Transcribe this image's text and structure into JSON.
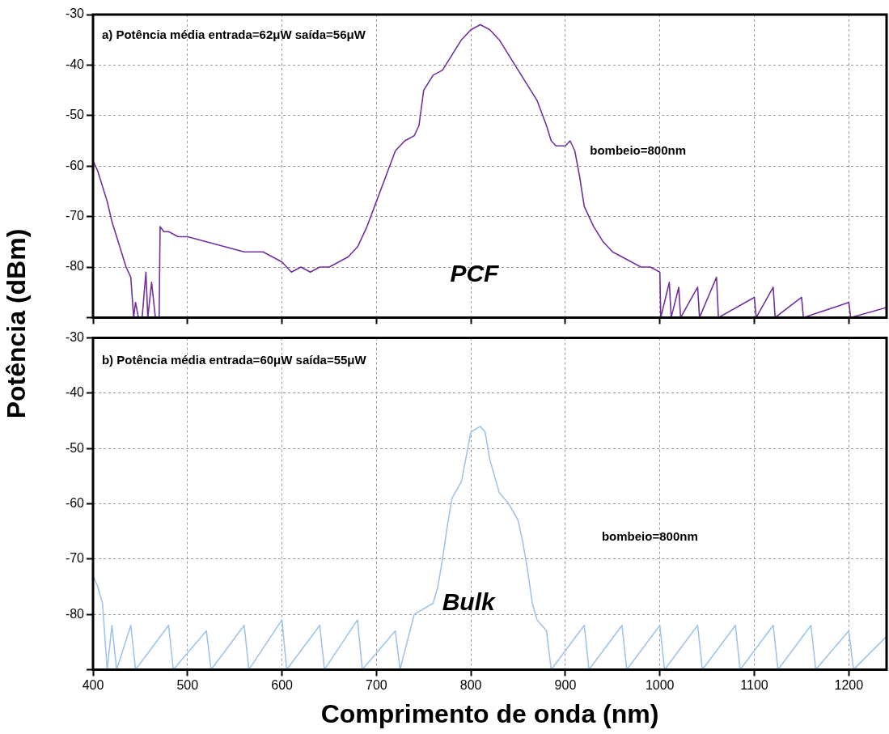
{
  "chart_data": [
    {
      "type": "line",
      "ylabel": "Potência (dBm)",
      "annotations": [
        "a) Potência média entrada=62μW saída=56μW",
        "bombeio=800nm"
      ],
      "xlim": [
        400,
        1240
      ],
      "xticks": [
        400,
        500,
        600,
        700,
        800,
        900,
        1000,
        1100,
        1200
      ],
      "ylim": [
        -90,
        -30
      ],
      "yticks": [
        -30,
        -40,
        -50,
        -60,
        -70,
        -80,
        {
          "value": -90,
          "label": null
        }
      ],
      "grid": true,
      "legend": false,
      "tick_labels": "y",
      "marker": "none",
      "line_style": "solid",
      "series": [
        {
          "name": "PCF",
          "color": "#7030a0",
          "x": [
            400,
            405,
            410,
            415,
            420,
            425,
            430,
            435,
            440,
            443,
            445,
            448,
            452,
            456,
            458,
            462,
            466,
            470,
            471,
            475,
            480,
            490,
            500,
            520,
            540,
            560,
            580,
            600,
            610,
            620,
            630,
            640,
            650,
            660,
            670,
            680,
            690,
            700,
            710,
            720,
            730,
            740,
            745,
            750,
            760,
            770,
            780,
            790,
            800,
            810,
            820,
            830,
            840,
            850,
            860,
            870,
            880,
            885,
            890,
            900,
            905,
            910,
            915,
            920,
            930,
            940,
            950,
            960,
            970,
            980,
            990,
            1000,
            1001,
            1010,
            1012,
            1020,
            1022,
            1040,
            1042,
            1060,
            1062,
            1100,
            1102,
            1120,
            1122,
            1150,
            1152,
            1200,
            1202,
            1240
          ],
          "values": [
            -59,
            -61,
            -64,
            -67,
            -71,
            -74,
            -77,
            -80,
            -82,
            -90,
            -87,
            -90,
            -90,
            -81,
            -90,
            -83,
            -90,
            -90,
            -72,
            -73,
            -73,
            -74,
            -74,
            -75,
            -76,
            -77,
            -77,
            -79,
            -81,
            -80,
            -81,
            -80,
            -80,
            -79,
            -78,
            -76,
            -72,
            -67,
            -62,
            -57,
            -55,
            -54,
            -52,
            -45,
            -42,
            -41,
            -38,
            -35,
            -33,
            -32,
            -33,
            -35,
            -38,
            -41,
            -44,
            -47,
            -52,
            -55,
            -56,
            -56,
            -55,
            -57,
            -62,
            -68,
            -72,
            -75,
            -77,
            -78,
            -79,
            -80,
            -80,
            -81,
            -90,
            -83,
            -90,
            -84,
            -90,
            -84,
            -90,
            -82,
            -90,
            -86,
            -90,
            -84,
            -90,
            -86,
            -90,
            -87,
            -90,
            -88
          ]
        }
      ]
    },
    {
      "type": "line",
      "xlabel": "Comprimento de onda (nm)",
      "annotations": [
        "b) Potência média entrada=60μW saída=55μW",
        "bombeio=800nm"
      ],
      "xlim": [
        400,
        1240
      ],
      "xticks": [
        400,
        500,
        600,
        700,
        800,
        900,
        1000,
        1100,
        1200
      ],
      "ylim": [
        -90,
        -30
      ],
      "yticks": [
        -30,
        -40,
        -50,
        -60,
        -70,
        -80,
        {
          "value": -90,
          "label": null
        }
      ],
      "grid": true,
      "legend": false,
      "marker": "none",
      "line_style": "solid",
      "series": [
        {
          "name": "Bulk",
          "color": "#9fc5e8",
          "x": [
            400,
            405,
            410,
            415,
            420,
            425,
            440,
            445,
            480,
            485,
            520,
            525,
            560,
            565,
            600,
            605,
            640,
            645,
            680,
            685,
            720,
            725,
            740,
            750,
            760,
            765,
            770,
            775,
            780,
            790,
            800,
            810,
            815,
            820,
            830,
            840,
            850,
            855,
            860,
            865,
            870,
            880,
            885,
            920,
            925,
            960,
            965,
            1000,
            1005,
            1040,
            1045,
            1080,
            1085,
            1120,
            1125,
            1160,
            1165,
            1200,
            1205,
            1240
          ],
          "values": [
            -73,
            -75,
            -78,
            -90,
            -82,
            -90,
            -82,
            -90,
            -82,
            -90,
            -83,
            -90,
            -82,
            -90,
            -81,
            -90,
            -82,
            -90,
            -81,
            -90,
            -83,
            -90,
            -80,
            -79,
            -78,
            -75,
            -70,
            -64,
            -59,
            -56,
            -47,
            -46,
            -47,
            -52,
            -58,
            -60,
            -63,
            -67,
            -72,
            -78,
            -81,
            -83,
            -90,
            -82,
            -90,
            -82,
            -90,
            -82,
            -90,
            -82,
            -90,
            -82,
            -90,
            -82,
            -90,
            -82,
            -90,
            -83,
            -90,
            -84
          ]
        }
      ]
    }
  ]
}
